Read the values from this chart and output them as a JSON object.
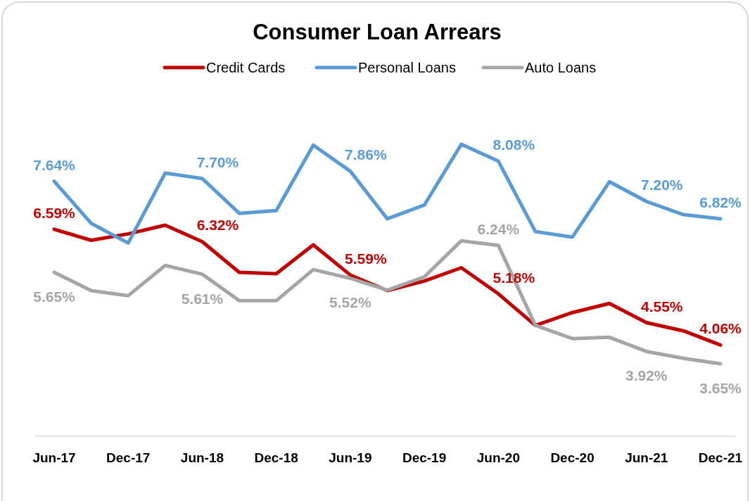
{
  "chart_data": {
    "type": "line",
    "title": "Consumer Loan Arrears",
    "categories": [
      "Jun-17",
      null,
      "Dec-17",
      null,
      "Jun-18",
      null,
      "Dec-18",
      null,
      "Jun-19",
      null,
      "Dec-19",
      null,
      "Jun-20",
      null,
      "Dec-20",
      null,
      "Jun-21",
      null,
      "Dec-21"
    ],
    "series": [
      {
        "name": "Credit Cards",
        "color": "#c00000",
        "values": [
          6.59,
          6.35,
          6.49,
          6.68,
          6.32,
          5.65,
          5.62,
          6.25,
          5.59,
          5.25,
          5.46,
          5.75,
          5.18,
          4.49,
          4.77,
          4.97,
          4.55,
          4.37,
          4.06
        ],
        "value_labels": [
          "6.59%",
          null,
          null,
          null,
          "6.32%",
          null,
          null,
          null,
          "5.59%",
          null,
          null,
          null,
          "5.18%",
          null,
          null,
          null,
          "4.55%",
          null,
          "4.06%"
        ]
      },
      {
        "name": "Personal Loans",
        "color": "#5b9bd5",
        "values": [
          7.64,
          6.72,
          6.29,
          7.82,
          7.7,
          6.94,
          7.0,
          8.43,
          7.86,
          6.82,
          7.12,
          8.45,
          8.08,
          6.54,
          6.42,
          7.63,
          7.2,
          6.91,
          6.82
        ],
        "value_labels": [
          "7.64%",
          null,
          null,
          null,
          "7.70%",
          null,
          null,
          null,
          "7.86%",
          null,
          null,
          null,
          "8.08%",
          null,
          null,
          null,
          "7.20%",
          null,
          "6.82%"
        ]
      },
      {
        "name": "Auto Loans",
        "color": "#a5a5a5",
        "values": [
          5.65,
          5.25,
          5.14,
          5.8,
          5.61,
          5.03,
          5.03,
          5.71,
          5.52,
          5.26,
          5.55,
          6.34,
          6.24,
          4.49,
          4.2,
          4.23,
          3.92,
          3.77,
          3.65
        ],
        "value_labels": [
          "5.65%",
          null,
          null,
          null,
          "5.61%",
          null,
          null,
          null,
          "5.52%",
          null,
          null,
          null,
          "6.24%",
          null,
          null,
          null,
          "3.92%",
          null,
          "3.65%"
        ]
      }
    ],
    "tick_labels": "x",
    "legend": "top",
    "marker": "none",
    "line_style": "solid"
  }
}
